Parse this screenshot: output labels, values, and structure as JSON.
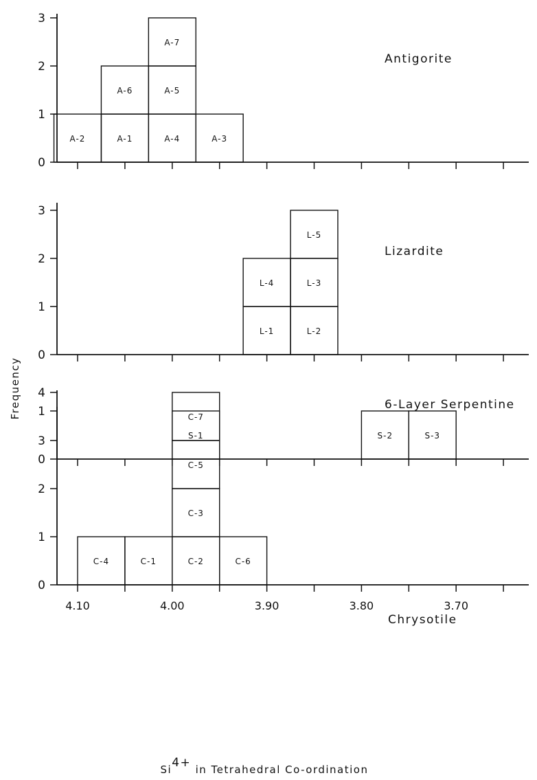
{
  "chart_data": {
    "type": "bar",
    "ylabel": "Frequency",
    "xlabel": {
      "prefix": "Si",
      "superscript": "4+",
      "suffix": " in Tetrahedral Co-ordination"
    },
    "x_ticks": [
      "4.10",
      "4.00",
      "3.90",
      "3.80",
      "3.70"
    ],
    "x_axis_reversed": true,
    "x_range": [
      4.15,
      3.65
    ],
    "grid": false,
    "panels": [
      {
        "name": "Antigorite",
        "ylim": [
          0,
          3
        ],
        "y_ticks": [
          "0",
          "1",
          "2",
          "3"
        ],
        "bins": [
          {
            "bin": [
              4.125,
              4.075
            ],
            "samples": [
              "A-2"
            ]
          },
          {
            "bin": [
              4.075,
              4.025
            ],
            "samples": [
              "A-1",
              "A-6"
            ]
          },
          {
            "bin": [
              4.025,
              3.975
            ],
            "samples": [
              "A-4",
              "A-5",
              "A-7"
            ]
          },
          {
            "bin": [
              3.975,
              3.925
            ],
            "samples": [
              "A-3"
            ]
          }
        ]
      },
      {
        "name": "Lizardite",
        "ylim": [
          0,
          3
        ],
        "y_ticks": [
          "0",
          "1",
          "2",
          "3"
        ],
        "bins": [
          {
            "bin": [
              3.925,
              3.875
            ],
            "samples": [
              "L-1",
              "L-4"
            ]
          },
          {
            "bin": [
              3.875,
              3.825
            ],
            "samples": [
              "L-2",
              "L-3",
              "L-5"
            ]
          }
        ]
      },
      {
        "name": "6-Layer Serpentine",
        "ylim": [
          0,
          1
        ],
        "y_ticks": [
          "0",
          "1"
        ],
        "bins": [
          {
            "bin": [
              4.0,
              3.95
            ],
            "samples": [
              "S-1"
            ]
          },
          {
            "bin": [
              3.8,
              3.75
            ],
            "samples": [
              "S-2"
            ]
          },
          {
            "bin": [
              3.75,
              3.7
            ],
            "samples": [
              "S-3"
            ]
          }
        ]
      },
      {
        "name": "Chrysotile",
        "ylim": [
          0,
          4
        ],
        "y_ticks": [
          "0",
          "1",
          "2",
          "3",
          "4"
        ],
        "bins": [
          {
            "bin": [
              4.1,
              4.05
            ],
            "samples": [
              "C-4"
            ]
          },
          {
            "bin": [
              4.05,
              4.0
            ],
            "samples": [
              "C-1"
            ]
          },
          {
            "bin": [
              4.0,
              3.95
            ],
            "samples": [
              "C-2",
              "C-3",
              "C-5",
              "C-7"
            ]
          },
          {
            "bin": [
              3.95,
              3.9
            ],
            "samples": [
              "C-6"
            ]
          }
        ]
      }
    ]
  }
}
